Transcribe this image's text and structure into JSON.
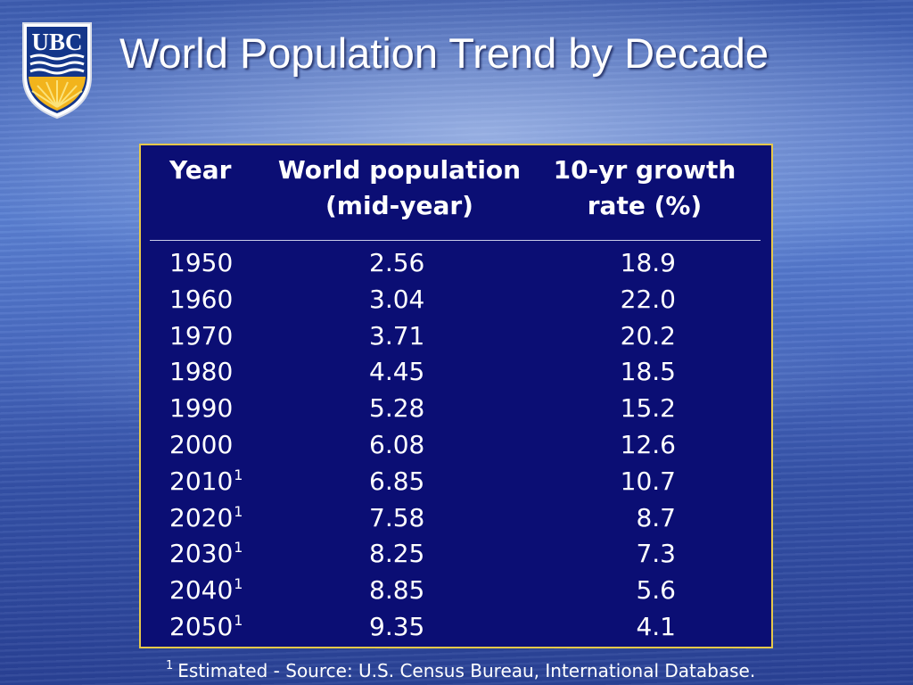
{
  "slide": {
    "title": "World Population Trend by Decade",
    "logo_text": "UBC"
  },
  "table": {
    "headers": {
      "year": "Year",
      "population_line1": "World population",
      "population_line2": "(mid-year)",
      "rate_line1": "10-yr growth",
      "rate_line2": "rate (%)"
    },
    "rows": [
      {
        "year": "1950",
        "note": "",
        "population": "2.56",
        "rate": "18.9"
      },
      {
        "year": "1960",
        "note": "",
        "population": "3.04",
        "rate": "22.0"
      },
      {
        "year": "1970",
        "note": "",
        "population": "3.71",
        "rate": "20.2"
      },
      {
        "year": "1980",
        "note": "",
        "population": "4.45",
        "rate": "18.5"
      },
      {
        "year": "1990",
        "note": "",
        "population": "5.28",
        "rate": "15.2"
      },
      {
        "year": "2000",
        "note": "",
        "population": "6.08",
        "rate": "12.6"
      },
      {
        "year": "2010",
        "note": "1",
        "population": "6.85",
        "rate": "10.7"
      },
      {
        "year": "2020",
        "note": "1",
        "population": "7.58",
        "rate": "8.7"
      },
      {
        "year": "2030",
        "note": "1",
        "population": "8.25",
        "rate": "7.3"
      },
      {
        "year": "2040",
        "note": "1",
        "population": "8.85",
        "rate": "5.6"
      },
      {
        "year": "2050",
        "note": "1",
        "population": "9.35",
        "rate": "4.1"
      }
    ]
  },
  "footnote": {
    "marker": "1",
    "text": "Estimated - Source: U.S. Census Bureau, International Database."
  },
  "colors": {
    "panel_background": "#0b0e74",
    "panel_border": "#e6c84a",
    "logo_gold": "#f2b41c",
    "logo_blue": "#14368a"
  }
}
